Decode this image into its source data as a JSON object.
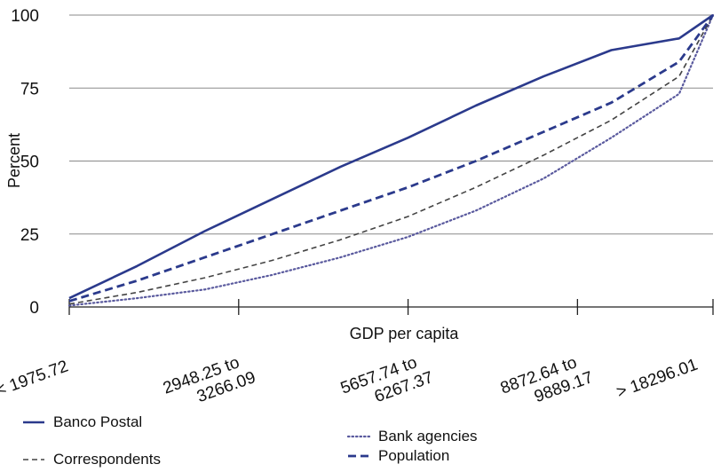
{
  "chart_data": {
    "type": "line",
    "xlabel": "GDP per capita",
    "ylabel": "Percent",
    "ylim": [
      0,
      100
    ],
    "yticks": [
      0,
      25,
      50,
      75,
      100
    ],
    "grid": "horizontal",
    "legend_placement": "bottom",
    "categories": [
      [
        "< 1975.72"
      ],
      [
        "2948.25 to",
        "3266.09"
      ],
      [
        "5657.74 to",
        "6267.37"
      ],
      [
        "8872.64 to",
        "9889.17"
      ],
      [
        "> 18296.01"
      ]
    ],
    "x": [
      0,
      0.4,
      0.8,
      1.2,
      1.6,
      2.0,
      2.4,
      2.8,
      3.2,
      3.6,
      3.8
    ],
    "series": [
      {
        "name": "Banco Postal",
        "style": "solid",
        "color": "#2b3a8c",
        "values": [
          3,
          14,
          26,
          37,
          48,
          58,
          69,
          79,
          88,
          92,
          100
        ]
      },
      {
        "name": "Bank agencies",
        "style": "dotted",
        "color": "#5a5a9e",
        "values": [
          0.5,
          3,
          6,
          11,
          17,
          24,
          33,
          44,
          58,
          73,
          100
        ]
      },
      {
        "name": "Correspondents",
        "style": "dashed-thin",
        "color": "#444444",
        "values": [
          1,
          5,
          10,
          16,
          23,
          31,
          41,
          52,
          64,
          79,
          100
        ]
      },
      {
        "name": "Population",
        "style": "dashed-thick",
        "color": "#2b3a8c",
        "values": [
          2,
          9,
          17,
          25,
          33,
          41,
          50,
          60,
          70,
          84,
          100
        ]
      }
    ]
  },
  "legend": {
    "banco_postal": "Banco Postal",
    "bank_agencies": "Bank agencies",
    "correspondents": "Correspondents",
    "population": "Population"
  }
}
